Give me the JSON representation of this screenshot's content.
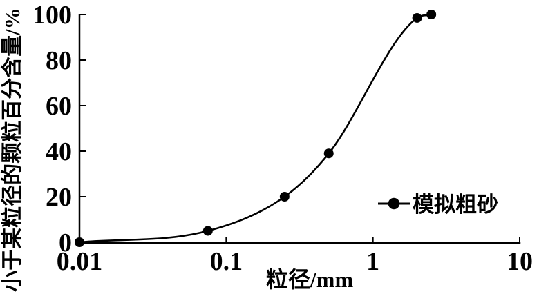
{
  "chart_data": {
    "type": "line",
    "title": "",
    "xlabel": "粒径/mm",
    "ylabel": "小于某粒径的颗粒百分含量/%",
    "x_scale": "log",
    "xlim": [
      0.01,
      10
    ],
    "ylim": [
      0,
      100
    ],
    "xticks": [
      "0.01",
      "0.1",
      "1",
      "10"
    ],
    "yticks": [
      "0",
      "20",
      "40",
      "60",
      "80",
      "100"
    ],
    "grid": false,
    "legend": {
      "position": "right-middle",
      "entries": [
        {
          "label": "模拟粗砂",
          "marker": "filled-circle",
          "line": "solid"
        }
      ]
    },
    "series": [
      {
        "name": "模拟粗砂",
        "marker": "filled-circle",
        "points": [
          [
            0.01,
            0
          ],
          [
            0.075,
            5
          ],
          [
            0.25,
            20
          ],
          [
            0.5,
            39
          ],
          [
            2,
            98.5
          ],
          [
            2.5,
            100
          ]
        ]
      }
    ],
    "colors": {
      "foreground": "#000000",
      "background": "#ffffff"
    }
  }
}
